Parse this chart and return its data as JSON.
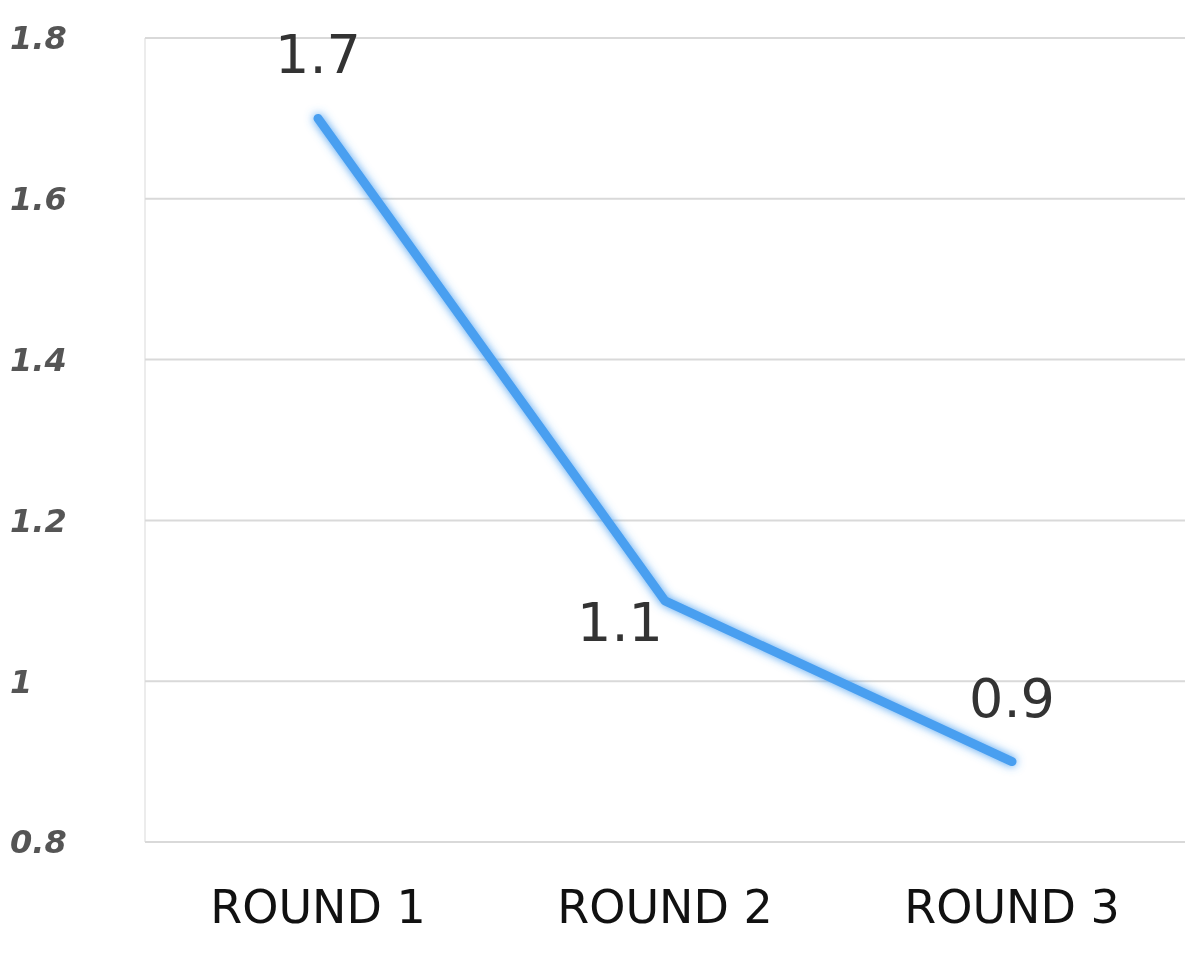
{
  "chart_data": {
    "type": "line",
    "categories": [
      "ROUND 1",
      "ROUND 2",
      "ROUND 3"
    ],
    "series": [
      {
        "color": "#4a9ff0",
        "values": [
          1.7,
          1.1,
          0.9
        ]
      }
    ],
    "ylim": [
      0.8,
      1.8
    ],
    "yticks": [
      0.8,
      1,
      1.2,
      1.4,
      1.6,
      1.8
    ],
    "grid": "y",
    "data_labels": true,
    "marker": "none",
    "line_style": "solid",
    "legend": false
  }
}
